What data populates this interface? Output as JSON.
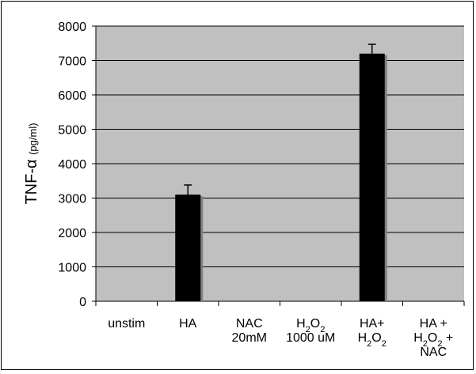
{
  "chart_data": {
    "type": "bar",
    "categories": [
      "unstim",
      "HA",
      "NAC 20mM",
      "H2O2 1000 uM",
      "HA+ H2O2",
      "HA + H2O2 + NAC"
    ],
    "category_label_lines": [
      [
        [
          {
            "t": "unstim"
          }
        ]
      ],
      [
        [
          {
            "t": "HA"
          }
        ]
      ],
      [
        [
          {
            "t": "NAC"
          }
        ],
        [
          {
            "t": "20mM"
          }
        ]
      ],
      [
        [
          {
            "t": "H"
          },
          {
            "t": "2",
            "sub": true
          },
          {
            "t": "O"
          },
          {
            "t": "2",
            "sub": true
          }
        ],
        [
          {
            "t": "1000 uM"
          }
        ]
      ],
      [
        [
          {
            "t": "HA+"
          }
        ],
        [
          {
            "t": "H"
          },
          {
            "t": "2",
            "sub": true
          },
          {
            "t": "O"
          },
          {
            "t": "2",
            "sub": true
          }
        ]
      ],
      [
        [
          {
            "t": "HA +"
          }
        ],
        [
          {
            "t": "H"
          },
          {
            "t": "2",
            "sub": true
          },
          {
            "t": "O"
          },
          {
            "t": "2",
            "sub": true
          },
          {
            "t": " +"
          }
        ],
        [
          {
            "t": "NAC"
          }
        ]
      ]
    ],
    "values": [
      0,
      3100,
      0,
      0,
      7200,
      10
    ],
    "errors": [
      0,
      280,
      0,
      0,
      270,
      0
    ],
    "ylabel_main": "TNF-α",
    "ylabel_unit": "(pg/ml)",
    "ylim": [
      0,
      8000
    ],
    "yticks": [
      0,
      1000,
      2000,
      3000,
      4000,
      5000,
      6000,
      7000,
      8000
    ],
    "grid": true,
    "colors": {
      "plot_bg": "#c0c0c0",
      "bar": "#000000",
      "bar_shadow": "#808080",
      "grid": "#000000"
    }
  }
}
